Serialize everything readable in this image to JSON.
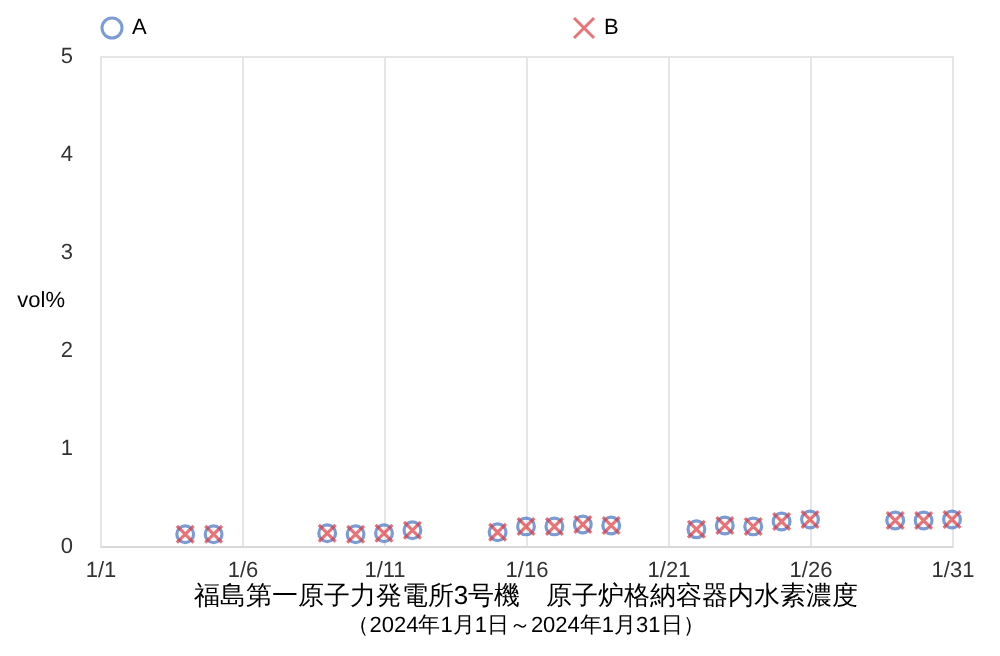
{
  "chart_data": {
    "type": "scatter",
    "title": "福島第一原子力発電所3号機　原子炉格納容器内水素濃度",
    "subtitle": "（2024年1月1日～2024年1月31日）",
    "ylabel": "vol%",
    "x": [
      "2024-01-04",
      "2024-01-05",
      "2024-01-09",
      "2024-01-10",
      "2024-01-11",
      "2024-01-12",
      "2024-01-15",
      "2024-01-16",
      "2024-01-17",
      "2024-01-18",
      "2024-01-19",
      "2024-01-22",
      "2024-01-23",
      "2024-01-24",
      "2024-01-25",
      "2024-01-26",
      "2024-01-29",
      "2024-01-30",
      "2024-01-31"
    ],
    "series": [
      {
        "name": "A",
        "color": "#4472c4",
        "marker": "circle",
        "values": [
          0.12,
          0.12,
          0.13,
          0.12,
          0.13,
          0.16,
          0.14,
          0.2,
          0.2,
          0.22,
          0.21,
          0.17,
          0.21,
          0.2,
          0.25,
          0.27,
          0.26,
          0.26,
          0.27
        ]
      },
      {
        "name": "B",
        "color": "#e0393e",
        "marker": "cross",
        "values": [
          0.12,
          0.12,
          0.13,
          0.12,
          0.13,
          0.16,
          0.14,
          0.2,
          0.2,
          0.22,
          0.21,
          0.17,
          0.21,
          0.2,
          0.25,
          0.27,
          0.26,
          0.26,
          0.27
        ]
      }
    ],
    "xlim": [
      "2024-01-01",
      "2024-01-31"
    ],
    "xticks": [
      {
        "value": "2024-01-01",
        "label": "1/1"
      },
      {
        "value": "2024-01-06",
        "label": "1/6"
      },
      {
        "value": "2024-01-11",
        "label": "1/11"
      },
      {
        "value": "2024-01-16",
        "label": "1/16"
      },
      {
        "value": "2024-01-21",
        "label": "1/21"
      },
      {
        "value": "2024-01-26",
        "label": "1/26"
      },
      {
        "value": "2024-01-31",
        "label": "1/31"
      }
    ],
    "ylim": [
      0,
      5
    ],
    "yticks": [
      0,
      1,
      2,
      3,
      4,
      5
    ],
    "grid": "x",
    "legend": "top"
  }
}
